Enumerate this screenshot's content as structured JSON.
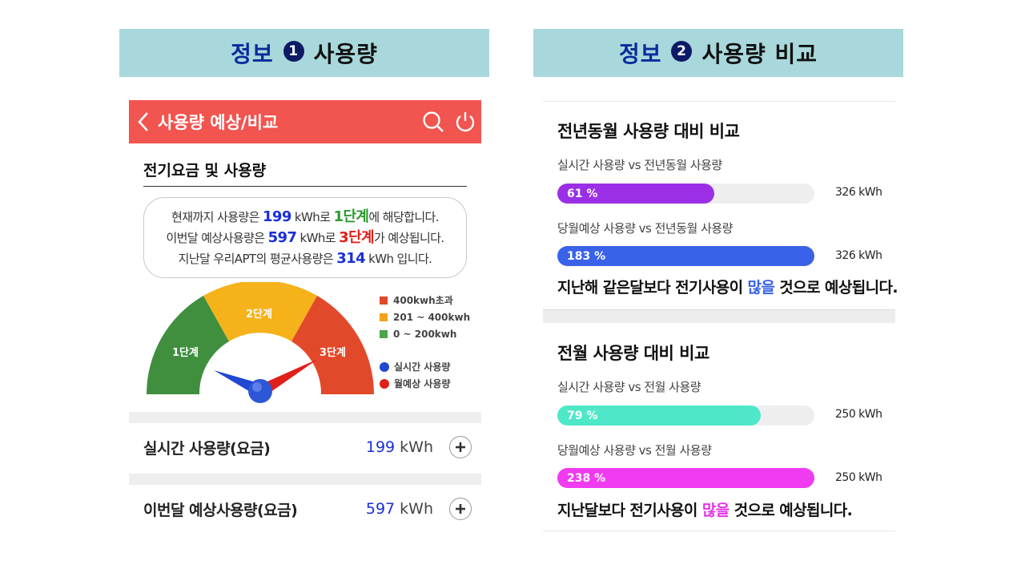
{
  "banners": {
    "left": {
      "prefix": "정보",
      "number": "1",
      "text": "사용량"
    },
    "right": {
      "prefix": "정보",
      "number": "2",
      "text": "사용량 비교"
    }
  },
  "app_header": {
    "title": "사용량 예상/비교",
    "icons": [
      "chevron-left-icon",
      "search-icon",
      "power-icon"
    ]
  },
  "section": {
    "title": "전기요금 및 사용량"
  },
  "info_box": {
    "line1": {
      "a": "현재까지 사용량은 ",
      "usage": "199",
      "b": " kWh로 ",
      "tier": "1단계",
      "c": "에 해당합니다."
    },
    "line2": {
      "a": "이번달 예상사용량은 ",
      "usage": "597",
      "b": " kWh로 ",
      "tier": "3단계",
      "c": "가 예상됩니다."
    },
    "line3": {
      "a": "지난달 우리APT의 평균사용량은 ",
      "usage": "314",
      "b": " kWh 입니다."
    }
  },
  "gauge": {
    "tier_labels": [
      "1단계",
      "2단계",
      "3단계"
    ],
    "colors": {
      "tier1": "#3f8f3f",
      "tier2": "#f6b21a",
      "tier3": "#e2492a",
      "realtime": "#1f47d1",
      "forecast": "#e0201a"
    },
    "realtime_needle": 199,
    "forecast_needle": 597
  },
  "legend": {
    "items": [
      {
        "label": "400kwh초과",
        "color": "#e2492a"
      },
      {
        "label": "201 ~ 400kwh",
        "color": "#f6a21a"
      },
      {
        "label": "0 ~ 200kwh",
        "color": "#4aa64a"
      }
    ],
    "markers": [
      {
        "label": "실시간 사용량",
        "color": "#1f47d1"
      },
      {
        "label": "월예상 사용량",
        "color": "#e0201a"
      }
    ]
  },
  "usage_rows": [
    {
      "label": "실시간 사용량(요금)",
      "value": "199",
      "unit": " kWh"
    },
    {
      "label": "이번달 예상사용량(요금)",
      "value": "597",
      "unit": " kWh"
    }
  ],
  "compare": {
    "year": {
      "title": "전년동월 사용량 대비 비교",
      "bars": [
        {
          "label": "실시간 사용량 vs 전년동월 사용량",
          "percent_text": "61 %",
          "percent": 61,
          "kwh": "326 kWh",
          "color": "#9b2fe6"
        },
        {
          "label": "당월예상 사용량 vs 전년동월 사용량",
          "percent_text": "183 %",
          "percent": 183,
          "kwh": "326 kWh",
          "color": "#3a62e8"
        }
      ],
      "message": {
        "a": "지난해 같은달보다 전기사용이 ",
        "hl": "많을",
        "b": " 것으로 예상됩니다."
      }
    },
    "month": {
      "title": "전월 사용량 대비 비교",
      "bars": [
        {
          "label": "실시간 사용량 vs 전월 사용량",
          "percent_text": "79 %",
          "percent": 79,
          "kwh": "250 kWh",
          "color": "#4ee8c8"
        },
        {
          "label": "당월예상 사용량 vs 전월 사용량",
          "percent_text": "238 %",
          "percent": 238,
          "kwh": "250 kWh",
          "color": "#f03cf0"
        }
      ],
      "message": {
        "a": "지난달보다 전기사용이 ",
        "hl": "많을",
        "b": " 것으로 예상됩니다."
      }
    }
  }
}
